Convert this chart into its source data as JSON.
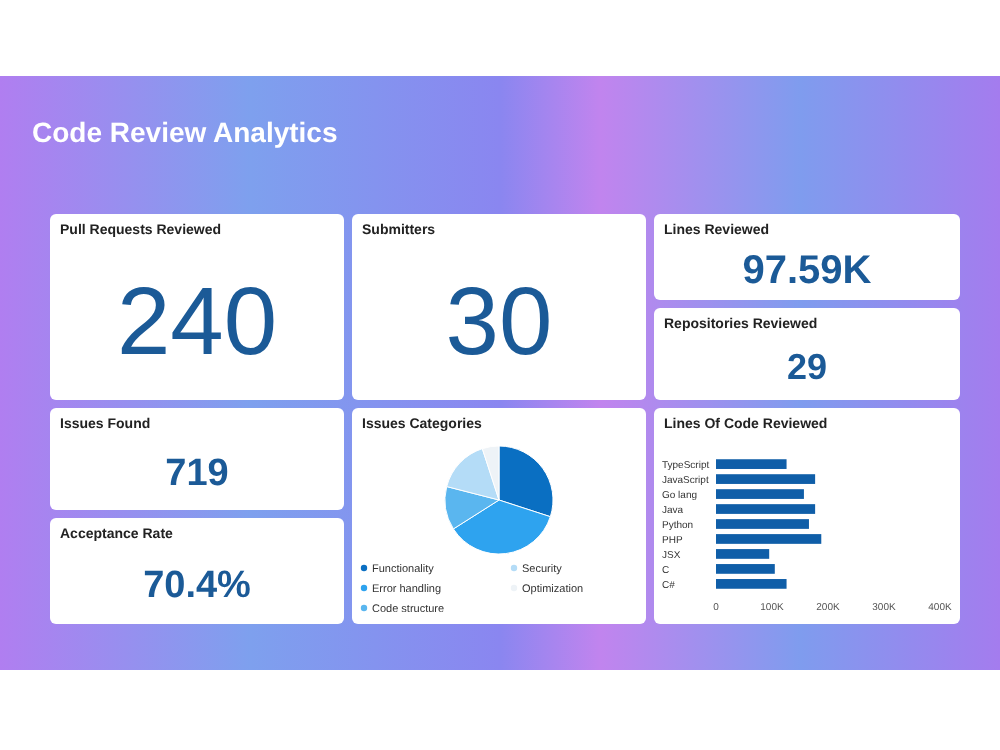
{
  "chart_data": [
    {
      "type": "other",
      "title": "Code Review Analytics"
    },
    {
      "type": "other",
      "title": "Pull Requests Reviewed",
      "annotations": [
        "240"
      ]
    },
    {
      "type": "other",
      "title": "Submitters",
      "annotations": [
        "30"
      ]
    },
    {
      "type": "other",
      "title": "Lines Reviewed",
      "annotations": [
        "97.59K"
      ]
    },
    {
      "type": "other",
      "title": "Repositories Reviewed",
      "annotations": [
        "29"
      ]
    },
    {
      "type": "other",
      "title": "Issues Found",
      "annotations": [
        "719"
      ]
    },
    {
      "type": "other",
      "title": "Acceptance Rate",
      "annotations": [
        "70.4%"
      ]
    },
    {
      "type": "pie",
      "title": "Issues Categories",
      "categories": [
        "Functionality",
        "Error handling",
        "Code structure",
        "Security",
        "Optimization"
      ],
      "values": [
        30,
        36,
        13,
        16,
        5
      ],
      "colors": [
        "#0a6fc2",
        "#2ea3ef",
        "#5ab6ef",
        "#b4dcf7",
        "#eef3f7"
      ],
      "legend": "bottom"
    },
    {
      "type": "bar",
      "orientation": "horizontal",
      "title": "Lines Of Code Reviewed",
      "categories": [
        "TypeScript",
        "JavaScript",
        "Go lang",
        "Java",
        "Python",
        "PHP",
        "JSX",
        "C",
        "C#"
      ],
      "values": [
        126000,
        177000,
        157000,
        177000,
        166000,
        188000,
        95000,
        105000,
        126000
      ],
      "color": "#0f5ea8",
      "xlim": [
        0,
        400000
      ],
      "xticks": [
        0,
        {
          "value": 100000,
          "label": "100K"
        },
        {
          "value": 200000,
          "label": "200K"
        },
        {
          "value": 300000,
          "label": "300K"
        },
        {
          "value": 400000,
          "label": "400K"
        }
      ]
    }
  ]
}
